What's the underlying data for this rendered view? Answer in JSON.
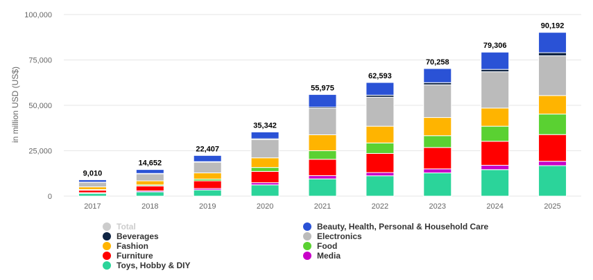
{
  "chart_data": {
    "type": "bar",
    "stacked": true,
    "categories": [
      "2017",
      "2018",
      "2019",
      "2020",
      "2021",
      "2022",
      "2023",
      "2024",
      "2025"
    ],
    "ylabel": "in million USD (US$)",
    "ylim": [
      0,
      100000
    ],
    "yticks": [
      0,
      25000,
      50000,
      75000,
      100000
    ],
    "ytick_labels": [
      "0",
      "25,000",
      "50,000",
      "75,000",
      "100,000"
    ],
    "grid": true,
    "legend_position": "bottom",
    "totals": [
      9010,
      14652,
      22407,
      35342,
      55975,
      62593,
      70258,
      79306,
      90192
    ],
    "total_labels": [
      "9,010",
      "14,652",
      "22,407",
      "35,342",
      "55,975",
      "62,593",
      "70,258",
      "79,306",
      "90,192"
    ],
    "series": [
      {
        "name": "Toys, Hobby & DIY",
        "color": "#2bd49a",
        "values": [
          1500,
          2300,
          3400,
          6200,
          9500,
          11200,
          12800,
          14600,
          16800
        ]
      },
      {
        "name": "Media",
        "color": "#c800c8",
        "values": [
          400,
          600,
          800,
          1200,
          1800,
          1800,
          2200,
          2400,
          2400
        ]
      },
      {
        "name": "Furniture",
        "color": "#ff0000",
        "values": [
          1400,
          2700,
          4200,
          6200,
          9000,
          10500,
          11800,
          13200,
          14700
        ]
      },
      {
        "name": "Food",
        "color": "#5ad132",
        "values": [
          300,
          600,
          1000,
          2200,
          4700,
          5800,
          6500,
          8300,
          11300
        ]
      },
      {
        "name": "Fashion",
        "color": "#ffb400",
        "values": [
          1500,
          2200,
          3400,
          5300,
          8800,
          9200,
          10000,
          10000,
          10200
        ]
      },
      {
        "name": "Electronics",
        "color": "#bbbbbb",
        "values": [
          2500,
          3900,
          5900,
          10000,
          14500,
          16000,
          18000,
          20000,
          21900
        ]
      },
      {
        "name": "Beverages",
        "color": "#0f2443",
        "values": [
          100,
          200,
          300,
          500,
          700,
          1100,
          1200,
          1300,
          1700
        ]
      },
      {
        "name": "Beauty, Health, Personal & Household Care",
        "color": "#2a52d6",
        "values": [
          1310,
          2152,
          3407,
          3742,
          6975,
          6993,
          7758,
          9506,
          11192
        ]
      }
    ]
  },
  "legend": {
    "items": [
      {
        "label": "Total",
        "color": "#cccccc",
        "disabled": true
      },
      {
        "label": "Beauty, Health, Personal & Household Care",
        "color": "#2a52d6",
        "disabled": false
      },
      {
        "label": "Beverages",
        "color": "#0f2443",
        "disabled": false
      },
      {
        "label": "Electronics",
        "color": "#bbbbbb",
        "disabled": false
      },
      {
        "label": "Fashion",
        "color": "#ffb400",
        "disabled": false
      },
      {
        "label": "Food",
        "color": "#5ad132",
        "disabled": false
      },
      {
        "label": "Furniture",
        "color": "#ff0000",
        "disabled": false
      },
      {
        "label": "Media",
        "color": "#c800c8",
        "disabled": false
      },
      {
        "label": "Toys, Hobby & DIY",
        "color": "#2bd49a",
        "disabled": false
      }
    ]
  }
}
